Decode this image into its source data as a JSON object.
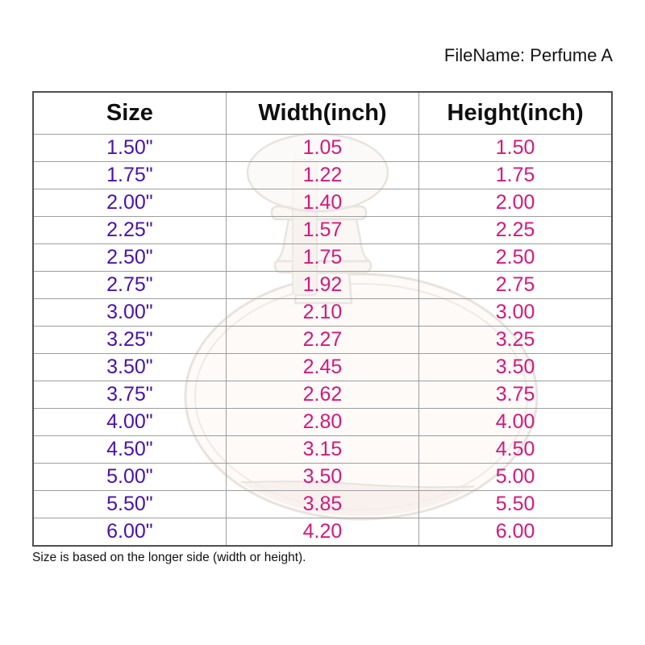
{
  "page": {
    "filename_label": "FileName: Perfume A",
    "note": "Size is based on the longer side (width or height)."
  },
  "chart_data": {
    "type": "table",
    "title": "FileName: Perfume A",
    "note": "Size is based on the longer side (width or height).",
    "columns": [
      "Size",
      "Width(inch)",
      "Height(inch)"
    ],
    "rows": [
      [
        "1.50\"",
        "1.05",
        "1.50"
      ],
      [
        "1.75\"",
        "1.22",
        "1.75"
      ],
      [
        "2.00\"",
        "1.40",
        "2.00"
      ],
      [
        "2.25\"",
        "1.57",
        "2.25"
      ],
      [
        "2.50\"",
        "1.75",
        "2.50"
      ],
      [
        "2.75\"",
        "1.92",
        "2.75"
      ],
      [
        "3.00\"",
        "2.10",
        "3.00"
      ],
      [
        "3.25\"",
        "2.27",
        "3.25"
      ],
      [
        "3.50\"",
        "2.45",
        "3.50"
      ],
      [
        "3.75\"",
        "2.62",
        "3.75"
      ],
      [
        "4.00\"",
        "2.80",
        "4.00"
      ],
      [
        "4.50\"",
        "3.15",
        "4.50"
      ],
      [
        "5.00\"",
        "3.50",
        "5.00"
      ],
      [
        "5.50\"",
        "3.85",
        "5.50"
      ],
      [
        "6.00\"",
        "4.20",
        "6.00"
      ]
    ]
  },
  "icons": {
    "watermark": "perfume-bottle-watermark"
  },
  "colors": {
    "size_text": "#4711b2",
    "value_text": "#d4187c",
    "header_text": "#0f0f0f",
    "outer_border": "#4f4f4f",
    "inner_border": "#9e9e9e",
    "background": "#ffffff"
  }
}
